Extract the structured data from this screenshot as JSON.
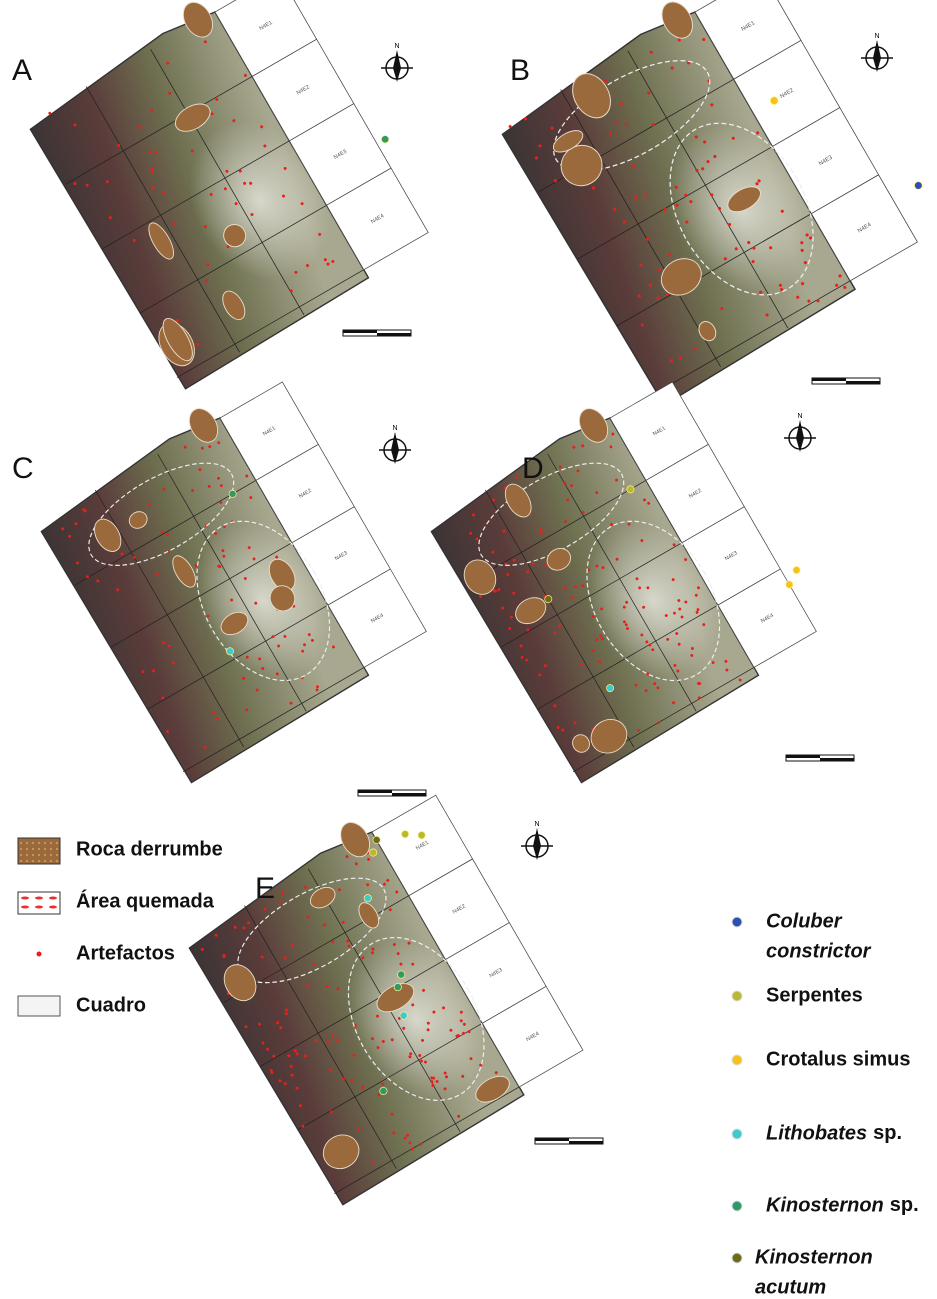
{
  "panels": [
    {
      "label": "A"
    },
    {
      "label": "B"
    },
    {
      "label": "C"
    },
    {
      "label": "D"
    },
    {
      "label": "E"
    }
  ],
  "grid_labels": [
    "N4E1",
    "N4E2",
    "N4E3",
    "N4E4"
  ],
  "north": "N",
  "legend": [
    {
      "label": "Roca derrumbe"
    },
    {
      "label": "Área quemada"
    },
    {
      "label": "Artefactos"
    },
    {
      "label": "Cuadro"
    }
  ],
  "species": [
    {
      "lines": [
        "Coluber",
        "constrictor"
      ],
      "italic": true,
      "color": "#2d4fb0"
    },
    {
      "lines": [
        "Serpentes"
      ],
      "italic": false,
      "color": "#b8b832"
    },
    {
      "lines": [
        "Crotalus simus"
      ],
      "italic": false,
      "color": "#f5c21b"
    },
    {
      "lines": [
        "Lithobates"
      ],
      "suffix": "sp.",
      "italic": true,
      "color": "#3ccbd0"
    },
    {
      "lines": [
        "Kinosternon"
      ],
      "suffix": "sp.",
      "italic": true,
      "color": "#2e9a6a"
    },
    {
      "lines": [
        "Kinosternon",
        "acutum"
      ],
      "italic": true,
      "color": "#6e6a1c"
    }
  ]
}
